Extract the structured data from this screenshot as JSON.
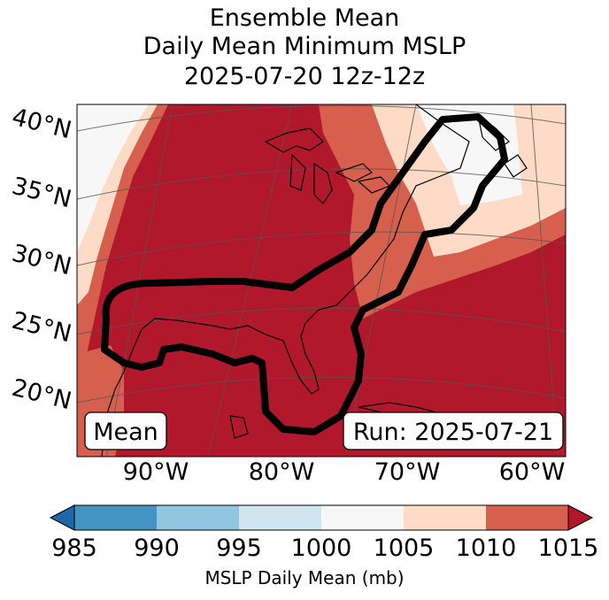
{
  "title": {
    "line1": "Ensemble Mean",
    "line2": "Daily Mean Minimum MSLP",
    "line3": "2025-07-20 12z-12z"
  },
  "map": {
    "lat_labels": [
      "40°N",
      "35°N",
      "30°N",
      "25°N",
      "20°N"
    ],
    "lon_labels": [
      "90°W",
      "80°W",
      "70°W",
      "60°W"
    ],
    "left_box": "Mean",
    "right_box": "Run: 2025-07-21",
    "outline_color": "#000000"
  },
  "colorbar": {
    "ticks": [
      "985",
      "990",
      "995",
      "1000",
      "1005",
      "1010",
      "1015"
    ],
    "colors": [
      "#2166ac",
      "#4393c3",
      "#92c5de",
      "#d1e5f0",
      "#f7f7f7",
      "#fddbc7",
      "#d6604d",
      "#b2182b"
    ],
    "label": "MSLP Daily Mean (mb)"
  }
}
